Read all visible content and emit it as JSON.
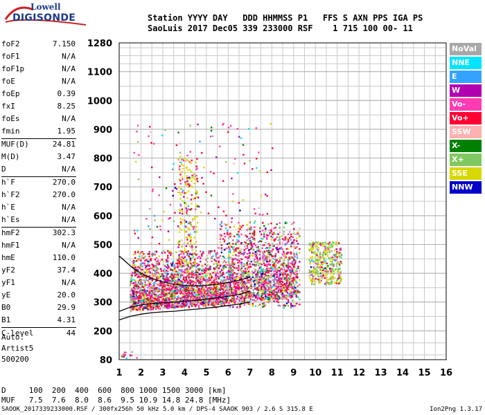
{
  "logo": {
    "line1": "Lowell",
    "line2": "DIGISONDE"
  },
  "header": {
    "line1": "Station YYYY DAY   DDD HHMMSS P1   FFS S AXN PPS IGA PS",
    "line2": "SaoLuis 2017 Dec05 339 233000 RSF    1 715 100 00- 11"
  },
  "params": [
    {
      "k": "foF2",
      "v": "7.150"
    },
    {
      "k": "foF1",
      "v": "N/A"
    },
    {
      "k": "foF1p",
      "v": "N/A"
    },
    {
      "k": "foE",
      "v": "N/A"
    },
    {
      "k": "foEp",
      "v": "0.39"
    },
    {
      "k": "fxI",
      "v": "8.25"
    },
    {
      "k": "foEs",
      "v": "N/A"
    },
    {
      "k": "fmin",
      "v": "1.95"
    },
    {
      "k": "MUF(D)",
      "v": "24.81"
    },
    {
      "k": "M(D)",
      "v": "3.47"
    },
    {
      "k": "D",
      "v": "N/A"
    },
    {
      "k": "h`F",
      "v": "270.0"
    },
    {
      "k": "h`F2",
      "v": "270.0"
    },
    {
      "k": "h`E",
      "v": "N/A"
    },
    {
      "k": "h`Es",
      "v": "N/A"
    },
    {
      "k": "hmF2",
      "v": "302.3"
    },
    {
      "k": "hmF1",
      "v": "N/A"
    },
    {
      "k": "hmE",
      "v": "110.0"
    },
    {
      "k": "yF2",
      "v": "37.4"
    },
    {
      "k": "yF1",
      "v": "N/A"
    },
    {
      "k": "yE",
      "v": "20.0"
    },
    {
      "k": "B0",
      "v": "29.9"
    },
    {
      "k": "B1",
      "v": "4.31"
    },
    {
      "k": "C-level",
      "v": "44"
    }
  ],
  "auto": {
    "line1": "Auto:",
    "line2": "Artist5",
    "line3": "500200"
  },
  "legend": [
    {
      "label": "NoVal",
      "color": "#a8a8a8"
    },
    {
      "label": "NNE",
      "color": "#00e5ff"
    },
    {
      "label": "E",
      "color": "#33a3ff"
    },
    {
      "label": "W",
      "color": "#b000b0"
    },
    {
      "label": "Vo-",
      "color": "#ff3cb4"
    },
    {
      "label": "Vo+",
      "color": "#ff0033"
    },
    {
      "label": "SSW",
      "color": "#ffb0b0"
    },
    {
      "label": "X-",
      "color": "#008000"
    },
    {
      "label": "X+",
      "color": "#80c860"
    },
    {
      "label": "SSE",
      "color": "#d8d800"
    },
    {
      "label": "NNW",
      "color": "#0000c8"
    }
  ],
  "chart_data": {
    "type": "scatter",
    "title": "",
    "xlabel": "",
    "ylabel": "",
    "xlim": [
      1,
      16
    ],
    "ylim": [
      80,
      1280
    ],
    "x_ticks": [
      "1",
      "2",
      "3",
      "4",
      "5",
      "6",
      "7",
      "8",
      "9",
      "10",
      "11",
      "12",
      "13",
      "14",
      "15",
      "16"
    ],
    "y_ticks": [
      "80",
      "200",
      "300",
      "400",
      "500",
      "600",
      "700",
      "800",
      "900",
      "1000",
      "1100",
      "1280"
    ],
    "y_tick_values": [
      80,
      200,
      300,
      400,
      500,
      600,
      700,
      800,
      900,
      1000,
      1100,
      1280
    ],
    "grid": true,
    "profile_curves": [
      {
        "name": "",
        "x": [
          1.0,
          1.5,
          2.0,
          2.5,
          3.0,
          3.5,
          4.0,
          4.5,
          5.0,
          5.5,
          6.0,
          6.5,
          7.0
        ],
        "y": [
          238,
          250,
          258,
          263,
          266,
          268,
          272,
          275,
          279,
          283,
          288,
          293,
          300
        ]
      },
      {
        "name": "",
        "x": [
          1.0,
          1.5,
          2.0,
          2.5,
          3.0,
          3.5,
          4.0,
          4.5,
          5.0,
          5.5,
          6.0,
          6.5,
          7.0
        ],
        "y": [
          268,
          282,
          290,
          295,
          298,
          300,
          303,
          306,
          310,
          315,
          320,
          326,
          338
        ]
      },
      {
        "name": "",
        "x": [
          1.0,
          1.3,
          1.6,
          2.0,
          2.5,
          3.0,
          3.5,
          4.0,
          4.5,
          5.0,
          5.5,
          6.0,
          6.5,
          7.0
        ],
        "y": [
          460,
          440,
          420,
          400,
          382,
          370,
          362,
          358,
          356,
          358,
          362,
          368,
          376,
          386
        ]
      }
    ]
  },
  "muf_table": {
    "line1": "D     100  200  400  600  800 1000 1500 3000 [km]",
    "line2": "MUF   7.5  7.6  8.0  8.6  9.5 10.9 14.8 24.8 [MHz]"
  },
  "footer": {
    "left": "SAOOK_2017339233000.RSF / 300fx256h 50 kHz 5.0 km / DPS-4 SAAOK 903 / 2.6 S 315.8 E",
    "right": "Ion2Png 1.3.17"
  }
}
